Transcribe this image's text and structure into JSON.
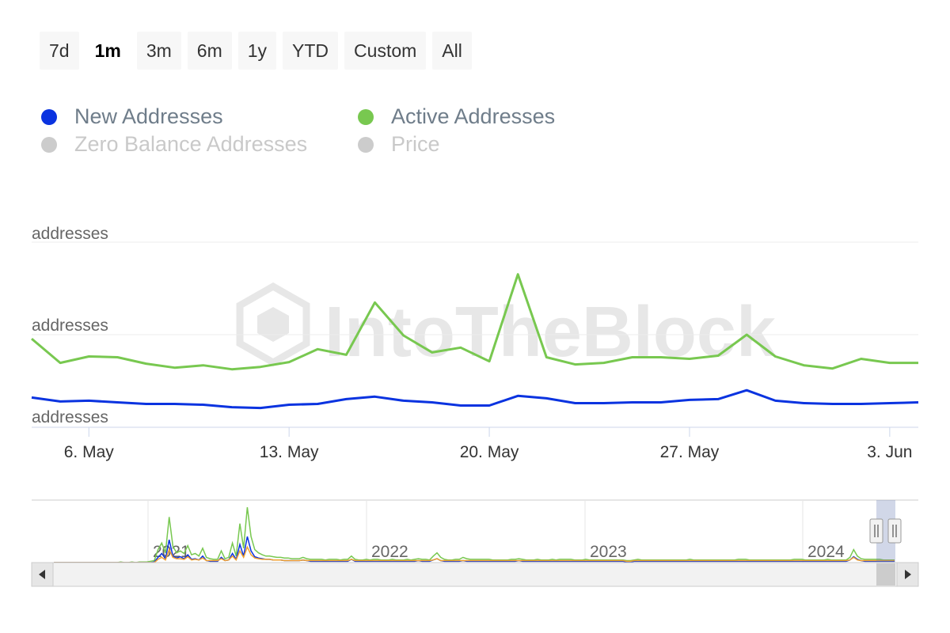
{
  "range_selector": {
    "buttons": [
      {
        "label": "7d",
        "active": false
      },
      {
        "label": "1m",
        "active": true
      },
      {
        "label": "3m",
        "active": false
      },
      {
        "label": "6m",
        "active": false
      },
      {
        "label": "1y",
        "active": false
      },
      {
        "label": "YTD",
        "active": false
      },
      {
        "label": "Custom",
        "active": false
      },
      {
        "label": "All",
        "active": false
      }
    ]
  },
  "legend": {
    "items": [
      {
        "label": "New Addresses",
        "color": "#0a33e0",
        "visible": true
      },
      {
        "label": "Active Addresses",
        "color": "#78c850",
        "visible": true
      },
      {
        "label": "Zero Balance Addresses",
        "color": "#cccccc",
        "visible": false
      },
      {
        "label": "Price",
        "color": "#cccccc",
        "visible": false
      }
    ]
  },
  "watermark": "IntoTheBlock",
  "chart_data": {
    "type": "line",
    "y_axis_labels": [
      "addresses",
      "addresses",
      "addresses"
    ],
    "x_tick_labels": [
      "6. May",
      "13. May",
      "20. May",
      "27. May",
      "3. Jun"
    ],
    "x": [
      "May 4",
      "May 5",
      "May 6",
      "May 7",
      "May 8",
      "May 9",
      "May 10",
      "May 11",
      "May 12",
      "May 13",
      "May 14",
      "May 15",
      "May 16",
      "May 17",
      "May 18",
      "May 19",
      "May 20",
      "May 21",
      "May 22",
      "May 23",
      "May 24",
      "May 25",
      "May 26",
      "May 27",
      "May 28",
      "May 29",
      "May 30",
      "May 31",
      "Jun 1",
      "Jun 2",
      "Jun 3",
      "Jun 4"
    ],
    "ylim": [
      0,
      230
    ],
    "grid": true,
    "legend_position": "top-left",
    "series": [
      {
        "name": "New Addresses",
        "color": "#0a33e0",
        "values": [
          37,
          32,
          33,
          31,
          29,
          29,
          28,
          25,
          24,
          28,
          29,
          35,
          38,
          33,
          31,
          27,
          27,
          39,
          36,
          30,
          30,
          31,
          31,
          34,
          35,
          46,
          33,
          30,
          29,
          29,
          30,
          31
        ]
      },
      {
        "name": "Active Addresses",
        "color": "#78c850",
        "values": [
          110,
          80,
          88,
          87,
          79,
          74,
          77,
          72,
          75,
          81,
          97,
          90,
          155,
          114,
          93,
          99,
          82,
          190,
          87,
          78,
          80,
          87,
          87,
          85,
          89,
          115,
          88,
          77,
          73,
          85,
          80,
          80
        ]
      }
    ],
    "navigator": {
      "year_labels": [
        "2021",
        "2022",
        "2023",
        "2024"
      ],
      "series": [
        {
          "name": "Active Addresses",
          "color": "#78c850",
          "values": [
            0,
            0,
            0,
            0,
            0,
            0,
            0,
            0,
            0,
            0,
            0,
            0,
            0,
            0,
            0,
            0,
            0,
            0,
            1,
            0,
            0,
            1,
            0,
            1,
            1,
            1,
            2,
            3,
            20,
            30,
            15,
            70,
            25,
            15,
            18,
            14,
            26,
            12,
            14,
            10,
            22,
            8,
            6,
            5,
            5,
            18,
            6,
            8,
            30,
            10,
            60,
            22,
            85,
            40,
            20,
            15,
            12,
            10,
            10,
            9,
            8,
            8,
            7,
            7,
            6,
            6,
            6,
            8,
            6,
            5,
            5,
            5,
            5,
            4,
            5,
            5,
            5,
            4,
            5,
            5,
            10,
            5,
            4,
            4,
            5,
            4,
            5,
            5,
            4,
            4,
            4,
            5,
            4,
            4,
            4,
            5,
            4,
            5,
            6,
            5,
            5,
            4,
            10,
            15,
            8,
            5,
            4,
            4,
            5,
            5,
            8,
            6,
            5,
            5,
            5,
            5,
            5,
            5,
            4,
            4,
            4,
            4,
            4,
            5,
            5,
            6,
            5,
            4,
            4,
            4,
            5,
            4,
            4,
            4,
            5,
            4,
            5,
            5,
            5,
            5,
            4,
            4,
            4,
            5,
            4,
            4,
            4,
            4,
            4,
            4,
            4,
            4,
            4,
            4,
            3,
            3,
            4,
            5,
            4,
            4,
            4,
            4,
            4,
            4,
            4,
            4,
            4,
            4,
            4,
            4,
            4,
            5,
            4,
            4,
            4,
            4,
            4,
            4,
            4,
            4,
            4,
            4,
            4,
            4,
            5,
            5,
            5,
            4,
            4,
            4,
            4,
            4,
            4,
            4,
            4,
            4,
            4,
            4,
            4,
            5,
            5,
            5,
            4,
            4,
            4,
            4,
            4,
            4,
            5,
            4,
            4,
            4,
            4,
            4,
            8,
            20,
            10,
            6,
            5,
            5,
            5,
            5,
            5,
            4,
            4,
            4,
            4
          ]
        },
        {
          "name": "New Addresses",
          "color": "#0a33e0",
          "values": [
            0,
            0,
            0,
            0,
            0,
            0,
            0,
            0,
            0,
            0,
            0,
            0,
            0,
            0,
            0,
            0,
            0,
            0,
            0,
            0,
            0,
            0,
            0,
            0,
            0,
            0,
            0,
            1,
            8,
            14,
            6,
            35,
            10,
            7,
            9,
            6,
            12,
            5,
            6,
            4,
            10,
            3,
            2,
            2,
            2,
            8,
            3,
            4,
            14,
            5,
            28,
            10,
            40,
            18,
            9,
            7,
            6,
            5,
            5,
            4,
            4,
            4,
            3,
            3,
            3,
            3,
            3,
            4,
            3,
            2,
            2,
            2,
            2,
            2,
            2,
            2,
            2,
            2,
            2,
            2,
            5,
            2,
            2,
            2,
            2,
            2,
            2,
            2,
            2,
            2,
            2,
            2,
            2,
            2,
            2,
            2,
            2,
            2,
            3,
            2,
            2,
            2,
            4,
            6,
            3,
            2,
            2,
            2,
            2,
            2,
            3,
            2,
            2,
            2,
            2,
            2,
            2,
            2,
            2,
            2,
            2,
            2,
            2,
            2,
            2,
            3,
            2,
            2,
            2,
            2,
            2,
            2,
            2,
            2,
            2,
            2,
            2,
            2,
            2,
            2,
            2,
            2,
            2,
            2,
            2,
            2,
            2,
            2,
            2,
            2,
            2,
            2,
            2,
            2,
            1,
            1,
            2,
            2,
            2,
            2,
            2,
            2,
            2,
            2,
            2,
            2,
            2,
            2,
            2,
            2,
            2,
            2,
            2,
            2,
            2,
            2,
            2,
            2,
            2,
            2,
            2,
            2,
            2,
            2,
            2,
            2,
            2,
            2,
            2,
            2,
            2,
            2,
            2,
            2,
            2,
            2,
            2,
            2,
            2,
            2,
            2,
            2,
            2,
            2,
            2,
            2,
            2,
            2,
            2,
            2,
            2,
            2,
            2,
            2,
            4,
            9,
            5,
            3,
            2,
            2,
            2,
            2,
            2,
            2,
            2,
            2,
            2
          ]
        },
        {
          "name": "Price",
          "color": "#f0a030",
          "values": [
            0,
            0,
            0,
            0,
            0,
            0,
            0,
            0,
            0,
            0,
            0,
            0,
            0,
            0,
            0,
            0,
            0,
            0,
            0,
            0,
            0,
            0,
            0,
            0,
            0,
            0,
            0,
            0,
            5,
            8,
            4,
            20,
            8,
            6,
            6,
            5,
            9,
            4,
            5,
            4,
            7,
            3,
            3,
            3,
            3,
            6,
            3,
            4,
            10,
            4,
            18,
            8,
            24,
            12,
            7,
            6,
            5,
            5,
            5,
            4,
            4,
            4,
            3,
            3,
            3,
            3,
            3,
            4,
            3,
            3,
            3,
            3,
            3,
            3,
            3,
            3,
            3,
            3,
            3,
            3,
            5,
            3,
            3,
            3,
            3,
            3,
            3,
            3,
            3,
            3,
            3,
            3,
            3,
            3,
            3,
            3,
            3,
            3,
            3,
            3,
            3,
            3,
            4,
            6,
            3,
            3,
            3,
            3,
            3,
            3,
            3,
            3,
            3,
            3,
            3,
            3,
            3,
            3,
            3,
            3,
            3,
            3,
            3,
            3,
            3,
            3,
            3,
            3,
            3,
            3,
            3,
            3,
            3,
            3,
            3,
            3,
            3,
            3,
            3,
            3,
            3,
            3,
            3,
            3,
            3,
            3,
            3,
            3,
            3,
            3,
            3,
            3,
            3,
            3,
            2,
            2,
            3,
            3,
            3,
            3,
            3,
            3,
            3,
            3,
            3,
            3,
            3,
            3,
            3,
            3,
            3,
            3,
            3,
            3,
            3,
            3,
            3,
            3,
            3,
            3,
            3,
            3,
            3,
            3,
            3,
            3,
            3,
            3,
            3,
            3,
            3,
            3,
            3,
            3,
            3,
            3,
            3,
            3,
            3,
            3,
            3,
            3,
            3,
            3,
            3,
            3,
            3,
            3,
            3,
            3,
            3,
            3,
            3,
            3,
            4,
            8,
            4,
            3,
            3,
            3,
            3,
            3,
            3,
            3,
            3,
            3,
            3
          ]
        }
      ]
    }
  }
}
